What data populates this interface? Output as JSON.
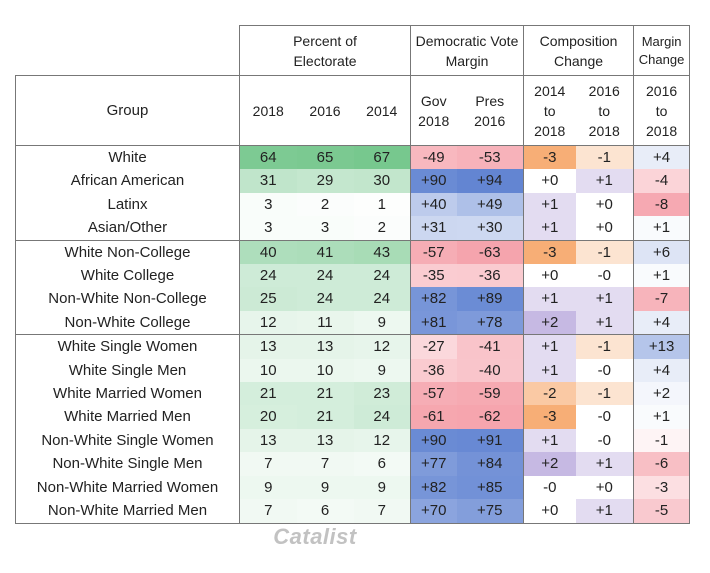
{
  "headers": {
    "group": "Group",
    "percent_of_electorate": "Percent of Electorate",
    "dem_vote_margin": "Democratic Vote Margin",
    "composition_change": "Composition Change",
    "margin_change": "Margin Change",
    "sub": [
      "2018",
      "2016",
      "2014",
      "Gov 2018",
      "Pres 2016",
      "2014 to 2018",
      "2016 to 2018",
      "2016 to 2018"
    ]
  },
  "rows": [
    {
      "group": "White",
      "pct": [
        "64",
        "65",
        "67"
      ],
      "margin": [
        "-49",
        "-53"
      ],
      "comp": [
        "-3",
        "-1"
      ],
      "mchg": "+4"
    },
    {
      "group": "African American",
      "pct": [
        "31",
        "29",
        "30"
      ],
      "margin": [
        "+90",
        "+94"
      ],
      "comp": [
        "+0",
        "+1"
      ],
      "mchg": "-4"
    },
    {
      "group": "Latinx",
      "pct": [
        "3",
        "2",
        "1"
      ],
      "margin": [
        "+40",
        "+49"
      ],
      "comp": [
        "+1",
        "+0"
      ],
      "mchg": "-8"
    },
    {
      "group": "Asian/Other",
      "pct": [
        "3",
        "3",
        "2"
      ],
      "margin": [
        "+31",
        "+30"
      ],
      "comp": [
        "+1",
        "+0"
      ],
      "mchg": "+1"
    },
    {
      "group": "White Non-College",
      "pct": [
        "40",
        "41",
        "43"
      ],
      "margin": [
        "-57",
        "-63"
      ],
      "comp": [
        "-3",
        "-1"
      ],
      "mchg": "+6"
    },
    {
      "group": "White College",
      "pct": [
        "24",
        "24",
        "24"
      ],
      "margin": [
        "-35",
        "-36"
      ],
      "comp": [
        "+0",
        "-0"
      ],
      "mchg": "+1"
    },
    {
      "group": "Non-White Non-College",
      "pct": [
        "25",
        "24",
        "24"
      ],
      "margin": [
        "+82",
        "+89"
      ],
      "comp": [
        "+1",
        "+1"
      ],
      "mchg": "-7"
    },
    {
      "group": "Non-White College",
      "pct": [
        "12",
        "11",
        "9"
      ],
      "margin": [
        "+81",
        "+78"
      ],
      "comp": [
        "+2",
        "+1"
      ],
      "mchg": "+4"
    },
    {
      "group": "White Single Women",
      "pct": [
        "13",
        "13",
        "12"
      ],
      "margin": [
        "-27",
        "-41"
      ],
      "comp": [
        "+1",
        "-1"
      ],
      "mchg": "+13"
    },
    {
      "group": "White Single Men",
      "pct": [
        "10",
        "10",
        "9"
      ],
      "margin": [
        "-36",
        "-40"
      ],
      "comp": [
        "+1",
        "-0"
      ],
      "mchg": "+4"
    },
    {
      "group": "White Married Women",
      "pct": [
        "21",
        "21",
        "23"
      ],
      "margin": [
        "-57",
        "-59"
      ],
      "comp": [
        "-2",
        "-1"
      ],
      "mchg": "+2"
    },
    {
      "group": "White Married Men",
      "pct": [
        "20",
        "21",
        "24"
      ],
      "margin": [
        "-61",
        "-62"
      ],
      "comp": [
        "-3",
        "-0"
      ],
      "mchg": "+1"
    },
    {
      "group": "Non-White Single Women",
      "pct": [
        "13",
        "13",
        "12"
      ],
      "margin": [
        "+90",
        "+91"
      ],
      "comp": [
        "+1",
        "-0"
      ],
      "mchg": "-1"
    },
    {
      "group": "Non-White Single Men",
      "pct": [
        "7",
        "7",
        "6"
      ],
      "margin": [
        "+77",
        "+84"
      ],
      "comp": [
        "+2",
        "+1"
      ],
      "mchg": "-6"
    },
    {
      "group": "Non-White Married Women",
      "pct": [
        "9",
        "9",
        "9"
      ],
      "margin": [
        "+82",
        "+85"
      ],
      "comp": [
        "-0",
        "+0"
      ],
      "mchg": "-3"
    },
    {
      "group": "Non-White Married Men",
      "pct": [
        "7",
        "6",
        "7"
      ],
      "margin": [
        "+70",
        "+75"
      ],
      "comp": [
        "+0",
        "+1"
      ],
      "mchg": "-5"
    }
  ],
  "colors": {
    "green_strong": "#5fbe7a",
    "blue_strong": "#5b7fd0",
    "red_strong": "#f0707e",
    "orange": "#f6a567",
    "purple": "#a08ad0"
  },
  "footer": {
    "logo_text": "Catalist"
  }
}
